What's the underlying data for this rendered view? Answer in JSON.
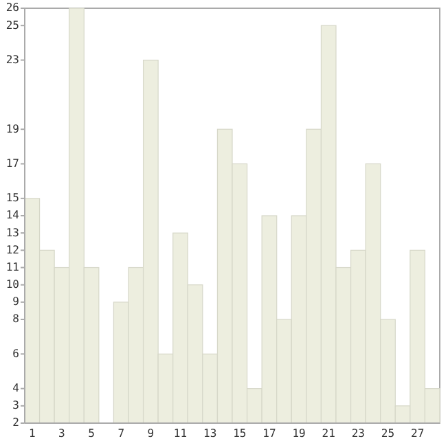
{
  "chart_data": {
    "type": "bar",
    "categories": [
      "1",
      null,
      "3",
      null,
      "5",
      null,
      "7",
      null,
      "9",
      null,
      "11",
      null,
      "13",
      null,
      "15",
      null,
      "17",
      null,
      "19",
      null,
      "21",
      null,
      "23",
      null,
      "25",
      null,
      "27",
      null
    ],
    "values": [
      15,
      12,
      11,
      26,
      11,
      2,
      9,
      11,
      23,
      6,
      13,
      10,
      6,
      19,
      17,
      4,
      14,
      8,
      14,
      19,
      25,
      11,
      12,
      17,
      8,
      3,
      12,
      4
    ],
    "color": "#edeedf",
    "ylim": [
      2,
      26
    ],
    "yticks": [
      2,
      3,
      4,
      6,
      8,
      9,
      10,
      11,
      12,
      13,
      14,
      15,
      17,
      19,
      23,
      25,
      26
    ],
    "grid": false
  }
}
